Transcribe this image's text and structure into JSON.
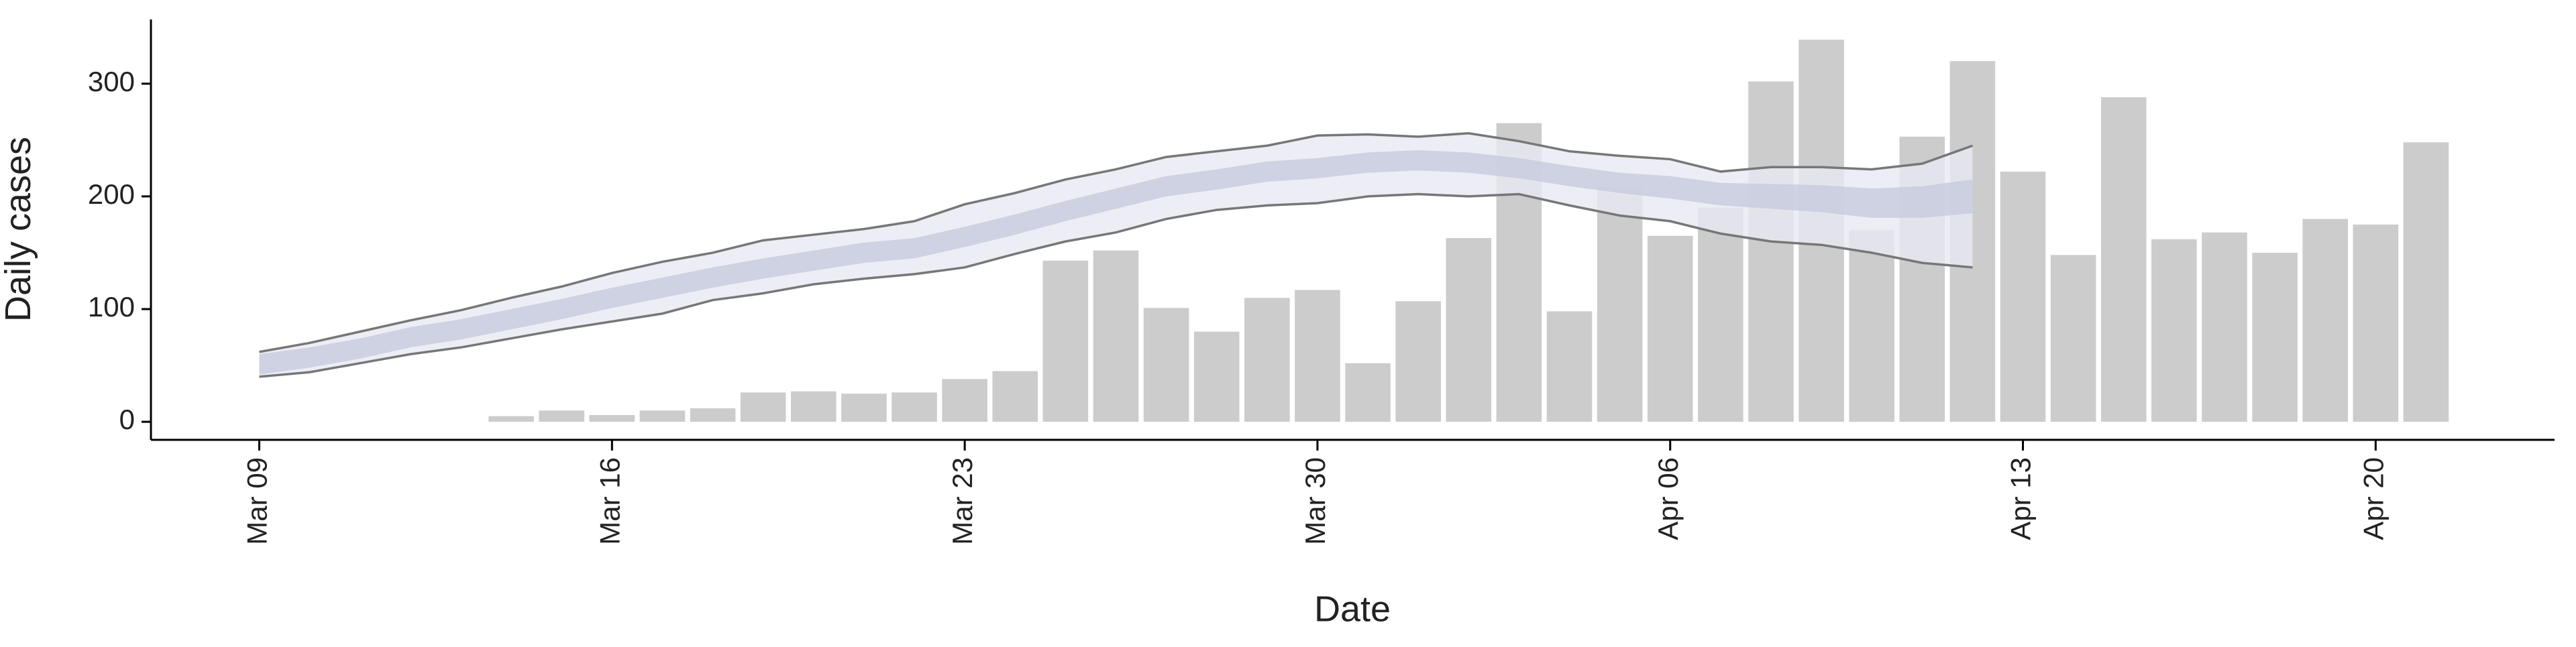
{
  "chart_data": {
    "type": "bar",
    "xlabel": "Date",
    "ylabel": "Daily cases",
    "categories": [
      "Mar 09",
      null,
      null,
      null,
      null,
      null,
      null,
      "Mar 16",
      null,
      null,
      null,
      null,
      null,
      null,
      "Mar 23",
      null,
      null,
      null,
      null,
      null,
      null,
      "Mar 30",
      null,
      null,
      null,
      null,
      null,
      null,
      "Apr 06",
      null,
      null,
      null,
      null,
      null,
      null,
      "Apr 13",
      null,
      null,
      null,
      null,
      null,
      null,
      "Apr 20",
      null
    ],
    "ylim": [
      -16,
      357
    ],
    "yticks": [
      0,
      100,
      200,
      300
    ],
    "series": [
      {
        "type": "bar",
        "color": "#cccccc",
        "values": [
          null,
          null,
          null,
          null,
          null,
          5,
          10,
          6,
          10,
          12,
          26,
          27,
          25,
          26,
          38,
          45,
          143,
          152,
          101,
          80,
          110,
          117,
          52,
          107,
          163,
          265,
          98,
          208,
          165,
          190,
          302,
          339,
          170,
          253,
          320,
          222,
          148,
          288,
          162,
          168,
          150,
          180,
          175,
          248
        ]
      },
      {
        "type": "band",
        "color": "#e8eaf2",
        "upper": [
          62,
          70,
          80,
          90,
          99,
          110,
          120,
          132,
          142,
          150,
          161,
          166,
          171,
          178,
          193,
          203,
          215,
          224,
          235,
          240,
          245,
          254,
          255,
          253,
          256,
          249,
          240,
          236,
          233,
          222,
          226,
          226,
          224,
          229,
          245,
          null,
          null,
          null,
          null,
          null,
          null,
          null,
          null,
          null
        ],
        "lower": [
          40,
          44,
          52,
          60,
          66,
          74,
          82,
          89,
          96,
          108,
          114,
          122,
          127,
          131,
          137,
          149,
          160,
          168,
          180,
          188,
          192,
          194,
          200,
          202,
          200,
          202,
          192,
          183,
          178,
          167,
          160,
          157,
          150,
          141,
          137,
          null,
          null,
          null,
          null,
          null,
          null,
          null,
          null,
          null
        ]
      },
      {
        "type": "band",
        "color": "#c6cbdd",
        "upper": [
          60,
          66,
          74,
          84,
          91,
          100,
          109,
          119,
          128,
          137,
          145,
          152,
          159,
          163,
          173,
          184,
          196,
          207,
          218,
          224,
          231,
          234,
          239,
          241,
          239,
          234,
          227,
          221,
          218,
          212,
          211,
          210,
          207,
          209,
          215,
          null,
          null,
          null,
          null,
          null,
          null,
          null,
          null,
          null
        ],
        "lower": [
          42,
          48,
          56,
          66,
          73,
          82,
          91,
          101,
          110,
          119,
          127,
          134,
          141,
          145,
          155,
          166,
          178,
          189,
          200,
          206,
          213,
          216,
          221,
          223,
          221,
          216,
          209,
          203,
          198,
          192,
          189,
          186,
          181,
          181,
          185,
          null,
          null,
          null,
          null,
          null,
          null,
          null,
          null,
          null
        ]
      }
    ]
  }
}
